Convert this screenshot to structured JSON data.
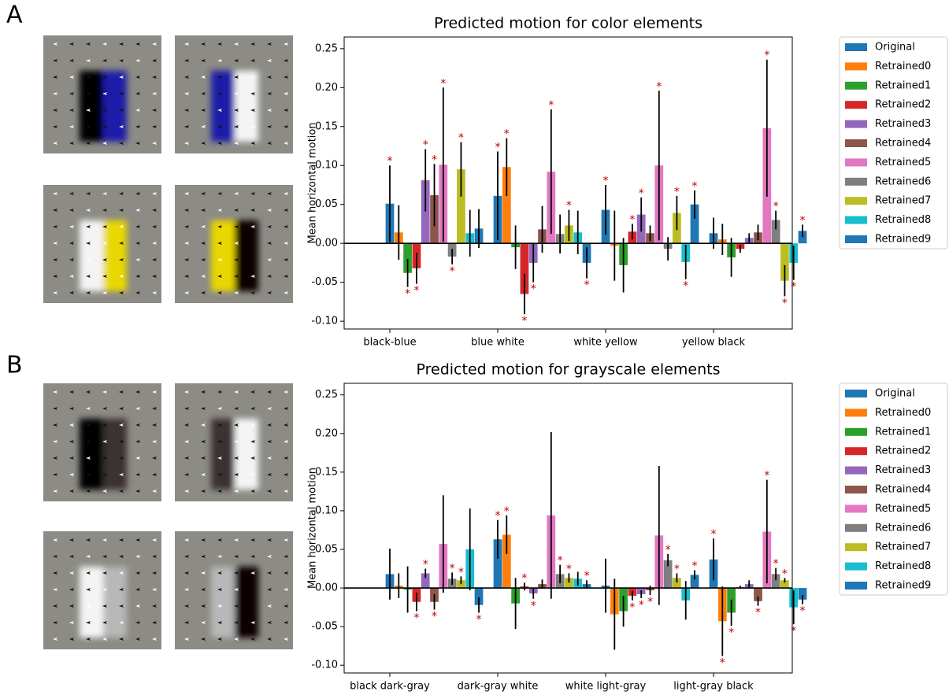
{
  "panel_labels": [
    "A",
    "B"
  ],
  "chart_data": [
    {
      "type": "bar",
      "title": "Predicted motion for color elements",
      "y_label": "Mean horizontal motion",
      "categories": [
        "black-blue",
        "blue white",
        "white yellow",
        "yellow black"
      ],
      "ylim": [
        -0.11,
        0.265
      ],
      "yticks": [
        {
          "value": -0.1,
          "label": "-0.10"
        },
        {
          "value": -0.05,
          "label": "-0.05"
        },
        {
          "value": 0,
          "label": "0.00"
        },
        {
          "value": 0.05,
          "label": "0.05"
        },
        {
          "value": 0.1,
          "label": "0.10"
        },
        {
          "value": 0.15,
          "label": "0.15"
        },
        {
          "value": 0.2,
          "label": "0.20"
        },
        {
          "value": 0.25,
          "label": "0.25"
        }
      ],
      "legend": "outside-right",
      "series": [
        {
          "name": "Original",
          "color": "#1f77b4",
          "values": [
            0.051,
            0.061,
            0.043,
            0.013
          ],
          "errors": [
            0.049,
            0.057,
            0.032,
            0.02
          ],
          "significance": [
            "*",
            "*",
            "*",
            null
          ]
        },
        {
          "name": "Retrained0",
          "color": "#ff7f0e",
          "values": [
            0.014,
            0.098,
            -0.003,
            0.005
          ],
          "errors": [
            0.035,
            0.037,
            0.045,
            0.02
          ],
          "significance": [
            null,
            "*",
            null,
            null
          ]
        },
        {
          "name": "Retrained1",
          "color": "#2ca02c",
          "values": [
            -0.038,
            -0.005,
            -0.028,
            -0.018
          ],
          "errors": [
            0.018,
            0.028,
            0.035,
            0.025
          ],
          "significance": [
            "*",
            null,
            null,
            null
          ]
        },
        {
          "name": "Retrained2",
          "color": "#d62728",
          "values": [
            -0.032,
            -0.065,
            0.015,
            -0.007
          ],
          "errors": [
            0.02,
            0.026,
            0.01,
            0.005
          ],
          "significance": [
            "*",
            "*",
            "*",
            null
          ]
        },
        {
          "name": "Retrained3",
          "color": "#9467bd",
          "values": [
            0.081,
            -0.025,
            0.037,
            0.007
          ],
          "errors": [
            0.04,
            0.025,
            0.022,
            0.006
          ],
          "significance": [
            "*",
            "*",
            "*",
            null
          ]
        },
        {
          "name": "Retrained4",
          "color": "#8c564b",
          "values": [
            0.062,
            0.018,
            0.013,
            0.014
          ],
          "errors": [
            0.04,
            0.03,
            0.01,
            0.01
          ],
          "significance": [
            "*",
            null,
            null,
            null
          ]
        },
        {
          "name": "Retrained5",
          "color": "#e377c2",
          "values": [
            0.101,
            0.092,
            0.1,
            0.148
          ],
          "errors": [
            0.099,
            0.08,
            0.096,
            0.088
          ],
          "significance": [
            "*",
            "*",
            "*",
            "*"
          ]
        },
        {
          "name": "Retrained6",
          "color": "#7f7f7f",
          "values": [
            -0.017,
            0.012,
            -0.007,
            0.03
          ],
          "errors": [
            0.01,
            0.025,
            0.015,
            0.012
          ],
          "significance": [
            "*",
            null,
            null,
            "*"
          ]
        },
        {
          "name": "Retrained7",
          "color": "#bcbd22",
          "values": [
            0.095,
            0.023,
            0.039,
            -0.048
          ],
          "errors": [
            0.035,
            0.02,
            0.022,
            0.02
          ],
          "significance": [
            "*",
            "*",
            "*",
            "*"
          ]
        },
        {
          "name": "Retrained8",
          "color": "#17becf",
          "values": [
            0.013,
            0.014,
            -0.024,
            -0.025
          ],
          "errors": [
            0.03,
            0.028,
            0.022,
            0.022
          ],
          "significance": [
            null,
            null,
            "*",
            "*"
          ]
        },
        {
          "name": "Retrained9",
          "color": "#1f77b4",
          "values": [
            0.019,
            -0.025,
            0.05,
            0.016
          ],
          "errors": [
            0.025,
            0.02,
            0.018,
            0.008
          ],
          "significance": [
            null,
            "*",
            "*",
            "*"
          ]
        }
      ]
    },
    {
      "type": "bar",
      "title": "Predicted motion for grayscale elements",
      "y_label": "Mean horizontal motion",
      "categories": [
        "black dark-gray",
        "dark-gray white",
        "white light-gray",
        "light-gray black"
      ],
      "ylim": [
        -0.11,
        0.265
      ],
      "yticks": [
        {
          "value": -0.1,
          "label": "-0.10"
        },
        {
          "value": -0.05,
          "label": "-0.05"
        },
        {
          "value": 0,
          "label": "0.00"
        },
        {
          "value": 0.05,
          "label": "0.05"
        },
        {
          "value": 0.1,
          "label": "0.10"
        },
        {
          "value": 0.15,
          "label": "0.15"
        },
        {
          "value": 0.2,
          "label": "0.20"
        },
        {
          "value": 0.25,
          "label": "0.25"
        }
      ],
      "legend": "outside-right",
      "series": [
        {
          "name": "Original",
          "color": "#1f77b4",
          "values": [
            0.018,
            0.063,
            0.003,
            0.037
          ],
          "errors": [
            0.033,
            0.025,
            0.035,
            0.027
          ],
          "significance": [
            null,
            "*",
            null,
            "*"
          ]
        },
        {
          "name": "Retrained0",
          "color": "#ff7f0e",
          "values": [
            0.003,
            0.069,
            -0.034,
            -0.043
          ],
          "errors": [
            0.016,
            0.025,
            0.046,
            0.045
          ],
          "significance": [
            null,
            "*",
            null,
            "*"
          ]
        },
        {
          "name": "Retrained1",
          "color": "#2ca02c",
          "values": [
            -0.002,
            -0.02,
            -0.03,
            -0.032
          ],
          "errors": [
            0.03,
            0.033,
            0.02,
            0.017
          ],
          "significance": [
            null,
            null,
            null,
            "*"
          ]
        },
        {
          "name": "Retrained2",
          "color": "#d62728",
          "values": [
            -0.018,
            0.002,
            -0.01,
            0.001
          ],
          "errors": [
            0.012,
            0.005,
            0.006,
            0.002
          ],
          "significance": [
            "*",
            "*",
            "*",
            null
          ]
        },
        {
          "name": "Retrained3",
          "color": "#9467bd",
          "values": [
            0.019,
            -0.007,
            -0.008,
            0.005
          ],
          "errors": [
            0.006,
            0.007,
            0.005,
            0.005
          ],
          "significance": [
            "*",
            "*",
            "*",
            null
          ]
        },
        {
          "name": "Retrained4",
          "color": "#8c564b",
          "values": [
            -0.018,
            0.005,
            -0.003,
            -0.017
          ],
          "errors": [
            0.01,
            0.006,
            0.006,
            0.006
          ],
          "significance": [
            "*",
            null,
            "*",
            "*"
          ]
        },
        {
          "name": "Retrained5",
          "color": "#e377c2",
          "values": [
            0.057,
            0.094,
            0.068,
            0.073
          ],
          "errors": [
            0.063,
            0.108,
            0.09,
            0.067
          ],
          "significance": [
            null,
            null,
            null,
            "*"
          ]
        },
        {
          "name": "Retrained6",
          "color": "#7f7f7f",
          "values": [
            0.012,
            0.018,
            0.036,
            0.018
          ],
          "errors": [
            0.008,
            0.012,
            0.008,
            0.008
          ],
          "significance": [
            "*",
            "*",
            "*",
            "*"
          ]
        },
        {
          "name": "Retrained7",
          "color": "#bcbd22",
          "values": [
            0.01,
            0.013,
            0.013,
            0.01
          ],
          "errors": [
            0.005,
            0.006,
            0.006,
            0.003
          ],
          "significance": [
            "*",
            "*",
            "*",
            "*"
          ]
        },
        {
          "name": "Retrained8",
          "color": "#17becf",
          "values": [
            0.05,
            0.012,
            -0.016,
            -0.025
          ],
          "errors": [
            0.053,
            0.009,
            0.025,
            0.022
          ],
          "significance": [
            null,
            null,
            null,
            "*"
          ]
        },
        {
          "name": "Retrained9",
          "color": "#1f77b4",
          "values": [
            -0.022,
            0.005,
            0.017,
            -0.015
          ],
          "errors": [
            0.01,
            0.005,
            0.006,
            0.006
          ],
          "significance": [
            "*",
            "*",
            "*",
            "*"
          ]
        }
      ]
    }
  ]
}
